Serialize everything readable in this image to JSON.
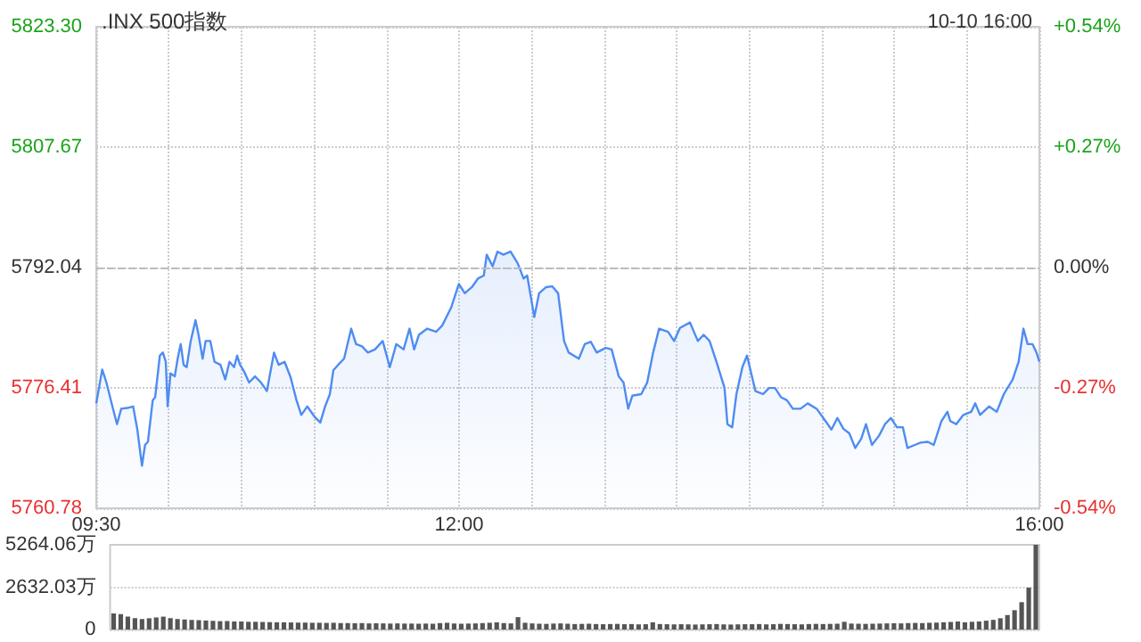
{
  "chart_data": [
    {
      "type": "area",
      "title": ".INX 500指数",
      "subtitle": "10-10 16:00",
      "color": "#4e8cf2",
      "marker": "none",
      "line_style": "solid",
      "grid": true,
      "x": [
        9.5,
        9.541,
        9.57,
        9.611,
        9.643,
        9.672,
        9.713,
        9.754,
        9.783,
        9.815,
        9.836,
        9.856,
        9.889,
        9.906,
        9.938,
        9.959,
        9.979,
        9.992,
        10.012,
        10.041,
        10.061,
        10.082,
        10.102,
        10.123,
        10.151,
        10.184,
        10.205,
        10.233,
        10.254,
        10.286,
        10.315,
        10.356,
        10.389,
        10.418,
        10.45,
        10.471,
        10.491,
        10.52,
        10.553,
        10.594,
        10.635,
        10.676,
        10.725,
        10.757,
        10.798,
        10.839,
        10.88,
        10.913,
        10.954,
        11.003,
        11.044,
        11.077,
        11.11,
        11.134,
        11.167,
        11.208,
        11.257,
        11.29,
        11.331,
        11.372,
        11.421,
        11.474,
        11.523,
        11.568,
        11.618,
        11.659,
        11.691,
        11.724,
        11.781,
        11.843,
        11.884,
        11.945,
        11.999,
        12.04,
        12.089,
        12.13,
        12.171,
        12.191,
        12.232,
        12.265,
        12.306,
        12.355,
        12.404,
        12.445,
        12.47,
        12.519,
        12.552,
        12.601,
        12.642,
        12.683,
        12.724,
        12.756,
        12.826,
        12.867,
        12.908,
        12.949,
        13.011,
        13.052,
        13.101,
        13.134,
        13.166,
        13.195,
        13.256,
        13.297,
        13.338,
        13.379,
        13.441,
        13.482,
        13.523,
        13.592,
        13.646,
        13.686,
        13.727,
        13.781,
        13.83,
        13.85,
        13.883,
        13.912,
        13.953,
        13.985,
        14.014,
        14.043,
        14.096,
        14.137,
        14.178,
        14.219,
        14.26,
        14.301,
        14.354,
        14.403,
        14.465,
        14.526,
        14.567,
        14.608,
        14.649,
        14.69,
        14.731,
        14.772,
        14.805,
        14.846,
        14.895,
        14.936,
        14.977,
        15.018,
        15.059,
        15.091,
        15.141,
        15.182,
        15.231,
        15.272,
        15.325,
        15.366,
        15.386,
        15.427,
        15.476,
        15.53,
        15.558,
        15.591,
        15.653,
        15.706,
        15.755,
        15.816,
        15.857,
        15.89,
        15.919,
        15.952,
        15.98,
        16.0
      ],
      "values": [
        5774.4,
        5778.8,
        5777.1,
        5774.0,
        5771.7,
        5773.7,
        5773.8,
        5774.0,
        5771.0,
        5766.3,
        5769.0,
        5769.4,
        5774.8,
        5775.2,
        5780.6,
        5781.0,
        5779.8,
        5774.0,
        5778.3,
        5777.9,
        5780.2,
        5782.1,
        5779.4,
        5779.1,
        5782.5,
        5785.2,
        5783.3,
        5780.2,
        5782.5,
        5782.5,
        5779.8,
        5779.4,
        5777.5,
        5779.8,
        5779.1,
        5780.6,
        5779.4,
        5778.5,
        5777.1,
        5777.9,
        5777.1,
        5776.0,
        5781.0,
        5779.4,
        5779.8,
        5777.8,
        5774.8,
        5772.9,
        5774.0,
        5772.7,
        5771.9,
        5774.0,
        5775.6,
        5778.7,
        5779.4,
        5780.2,
        5784.1,
        5782.1,
        5781.8,
        5781.0,
        5781.4,
        5782.5,
        5779.1,
        5782.1,
        5781.4,
        5784.1,
        5781.4,
        5783.3,
        5784.1,
        5783.7,
        5784.5,
        5786.8,
        5789.9,
        5788.7,
        5789.5,
        5790.6,
        5791.0,
        5793.7,
        5792.2,
        5794.1,
        5793.7,
        5794.1,
        5792.6,
        5790.6,
        5791.0,
        5785.6,
        5788.7,
        5789.5,
        5789.6,
        5788.7,
        5782.5,
        5781.0,
        5780.2,
        5782.1,
        5782.4,
        5781.0,
        5781.6,
        5781.4,
        5777.9,
        5777.1,
        5773.7,
        5775.4,
        5775.6,
        5777.1,
        5781.0,
        5784.1,
        5783.7,
        5782.5,
        5784.2,
        5784.9,
        5782.5,
        5783.3,
        5782.5,
        5779.4,
        5776.4,
        5771.7,
        5771.3,
        5775.6,
        5779.1,
        5780.6,
        5778.3,
        5776.0,
        5775.6,
        5776.4,
        5776.4,
        5775.2,
        5774.8,
        5773.7,
        5773.7,
        5774.4,
        5773.7,
        5772.1,
        5771.0,
        5772.5,
        5771.1,
        5770.5,
        5768.6,
        5769.8,
        5771.7,
        5769.0,
        5770.2,
        5771.7,
        5772.5,
        5771.3,
        5771.3,
        5768.6,
        5769.0,
        5769.3,
        5769.4,
        5769.0,
        5772.1,
        5773.3,
        5772.1,
        5771.7,
        5772.9,
        5773.3,
        5774.4,
        5772.9,
        5774.0,
        5773.3,
        5775.6,
        5777.5,
        5779.8,
        5784.1,
        5782.1,
        5782.1,
        5781.0,
        5779.8
      ],
      "xlim": [
        9.5,
        16
      ],
      "xticks": [
        {
          "value": 9.5,
          "label": "09:30"
        },
        {
          "value": 10,
          "label": null
        },
        {
          "value": 10.5,
          "label": null
        },
        {
          "value": 11,
          "label": null
        },
        {
          "value": 11.5,
          "label": null
        },
        {
          "value": 12,
          "label": "12:00"
        },
        {
          "value": 12.5,
          "label": null
        },
        {
          "value": 13,
          "label": null
        },
        {
          "value": 13.5,
          "label": null
        },
        {
          "value": 14,
          "label": null
        },
        {
          "value": 14.5,
          "label": null
        },
        {
          "value": 15,
          "label": null
        },
        {
          "value": 15.5,
          "label": null
        },
        {
          "value": 16,
          "label": "16:00"
        }
      ],
      "ylim": [
        5760.78,
        5823.3
      ],
      "yticks": [
        5760.78,
        5776.41,
        5792.04,
        5807.67,
        {
          "value": 5823.3,
          "label": "5823.30"
        }
      ],
      "y2lim": [
        -0.54,
        0.54
      ],
      "y2ticks": [
        {
          "value": -0.54,
          "label": "-0.54%"
        },
        {
          "value": -0.27,
          "label": "-0.27%"
        },
        {
          "value": 0,
          "label": "0.00%"
        },
        {
          "value": 0.27,
          "label": "+0.27%"
        },
        {
          "value": 0.54,
          "label": "+0.54%"
        }
      ],
      "ref_lines": [
        {
          "axis": "y",
          "value": 5792.04,
          "color": "#bbbbbb",
          "line_style": "dashed"
        }
      ]
    },
    {
      "type": "bar",
      "color": "#555555",
      "grid": "y",
      "tick_labels": "y",
      "categories": [
        null,
        null,
        null,
        null,
        null,
        null,
        null,
        null,
        null,
        null,
        null,
        null,
        null,
        null,
        null,
        null,
        null,
        null,
        null,
        null,
        null,
        null,
        null,
        null,
        null,
        null,
        null,
        null,
        null,
        null,
        null,
        null,
        null,
        null,
        null,
        null,
        null,
        null,
        null,
        null,
        null,
        null,
        null,
        null,
        null,
        null,
        null,
        null,
        null,
        null,
        null,
        null,
        null,
        null,
        null,
        null,
        null,
        null,
        null,
        null,
        null,
        null,
        null,
        null,
        null,
        null,
        null,
        null,
        null,
        null,
        null,
        null,
        null,
        null,
        null,
        null,
        null,
        null,
        null,
        null,
        null,
        null,
        null,
        null,
        null,
        null,
        null,
        null,
        null,
        null,
        null,
        null,
        null,
        null,
        null,
        null,
        null,
        null,
        null,
        null,
        null,
        null,
        null,
        null,
        null,
        null,
        null,
        null,
        null,
        null,
        null,
        null,
        null,
        null,
        null,
        null,
        null,
        null,
        null,
        null,
        null,
        null,
        null,
        null,
        null,
        null,
        null,
        null,
        null,
        null,
        null
      ],
      "values": [
        1000,
        950,
        800,
        700,
        650,
        700,
        750,
        800,
        700,
        650,
        620,
        600,
        580,
        560,
        540,
        520,
        520,
        500,
        500,
        480,
        480,
        470,
        460,
        450,
        450,
        440,
        430,
        430,
        420,
        420,
        410,
        420,
        400,
        400,
        390,
        400,
        380,
        390,
        380,
        370,
        380,
        370,
        370,
        360,
        370,
        360,
        400,
        420,
        380,
        360,
        370,
        380,
        400,
        420,
        450,
        400,
        380,
        770,
        420,
        380,
        360,
        350,
        370,
        380,
        360,
        340,
        350,
        360,
        340,
        330,
        340,
        350,
        330,
        340,
        320,
        330,
        450,
        340,
        330,
        320,
        330,
        320,
        310,
        320,
        330,
        340,
        320,
        310,
        320,
        330,
        330,
        340,
        320,
        330,
        350,
        340,
        330,
        320,
        340,
        350,
        340,
        350,
        360,
        480,
        370,
        360,
        350,
        360,
        370,
        380,
        390,
        380,
        400,
        410,
        400,
        420,
        430,
        450,
        470,
        500,
        450,
        480,
        500,
        550,
        600,
        700,
        900,
        1200,
        1700,
        2600,
        5264.06
      ],
      "ylim": [
        0,
        5264.06
      ],
      "yticks": [
        0,
        {
          "value": 2632.03,
          "label": "2632.03万"
        },
        {
          "value": 5264.06,
          "label": "5264.06万"
        }
      ]
    }
  ]
}
